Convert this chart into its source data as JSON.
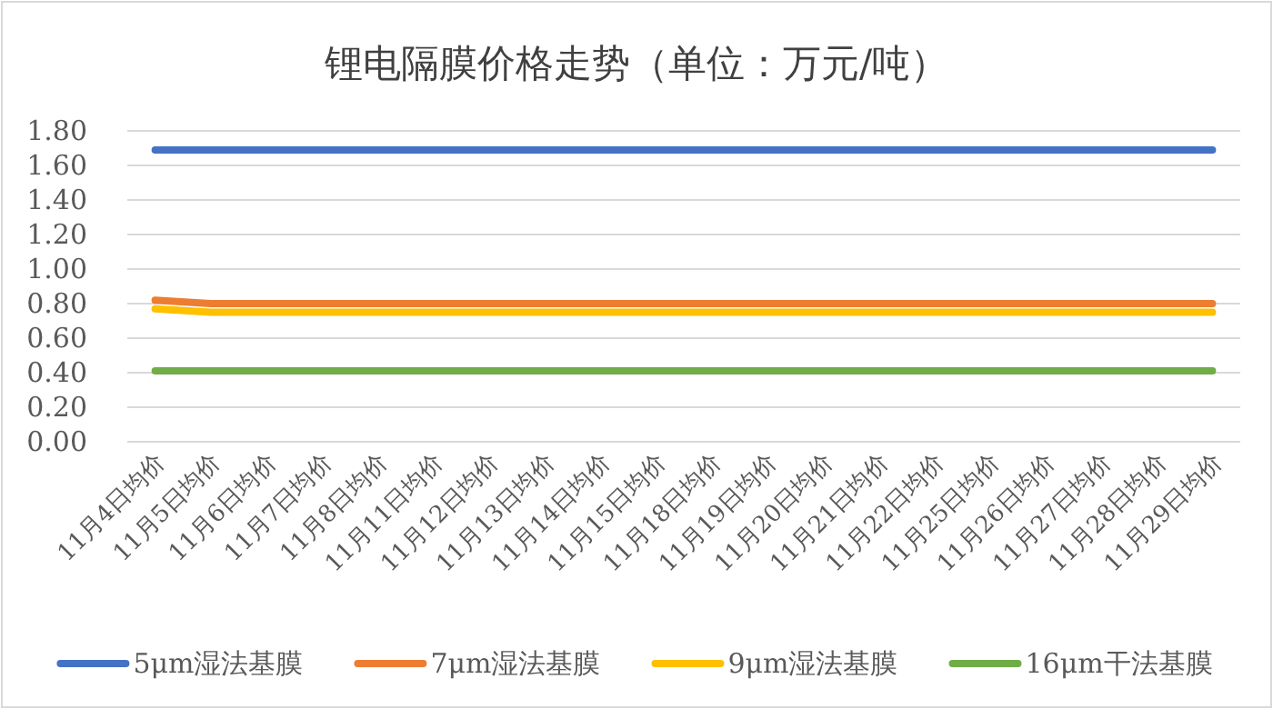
{
  "chart_data": {
    "type": "line",
    "title": "锂电隔膜价格走势（单位：万元/吨）",
    "categories": [
      "11月4日均价",
      "11月5日均价",
      "11月6日均价",
      "11月7日均价",
      "11月8日均价",
      "11月11日均价",
      "11月12日均价",
      "11月13日均价",
      "11月14日均价",
      "11月15日均价",
      "11月18日均价",
      "11月19日均价",
      "11月20日均价",
      "11月21日均价",
      "11月22日均价",
      "11月25日均价",
      "11月26日均价",
      "11月27日均价",
      "11月28日均价",
      "11月29日均价"
    ],
    "series": [
      {
        "name": "5μm湿法基膜",
        "color": "#4472c4",
        "values": [
          1.69,
          1.69,
          1.69,
          1.69,
          1.69,
          1.69,
          1.69,
          1.69,
          1.69,
          1.69,
          1.69,
          1.69,
          1.69,
          1.69,
          1.69,
          1.69,
          1.69,
          1.69,
          1.69,
          1.69
        ]
      },
      {
        "name": "7μm湿法基膜",
        "color": "#ed7d31",
        "values": [
          0.82,
          0.8,
          0.8,
          0.8,
          0.8,
          0.8,
          0.8,
          0.8,
          0.8,
          0.8,
          0.8,
          0.8,
          0.8,
          0.8,
          0.8,
          0.8,
          0.8,
          0.8,
          0.8,
          0.8
        ]
      },
      {
        "name": "9μm湿法基膜",
        "color": "#ffc000",
        "values": [
          0.77,
          0.75,
          0.75,
          0.75,
          0.75,
          0.75,
          0.75,
          0.75,
          0.75,
          0.75,
          0.75,
          0.75,
          0.75,
          0.75,
          0.75,
          0.75,
          0.75,
          0.75,
          0.75,
          0.75
        ]
      },
      {
        "name": "16μm干法基膜",
        "color": "#70ad47",
        "values": [
          0.41,
          0.41,
          0.41,
          0.41,
          0.41,
          0.41,
          0.41,
          0.41,
          0.41,
          0.41,
          0.41,
          0.41,
          0.41,
          0.41,
          0.41,
          0.41,
          0.41,
          0.41,
          0.41,
          0.41
        ]
      }
    ],
    "ylim": [
      0,
      1.8
    ],
    "yticks": [
      {
        "value": 0,
        "label": "0.00"
      },
      {
        "value": 0.2,
        "label": "0.20"
      },
      {
        "value": 0.4,
        "label": "0.40"
      },
      {
        "value": 0.6,
        "label": "0.60"
      },
      {
        "value": 0.8,
        "label": "0.80"
      },
      {
        "value": 1.0,
        "label": "1.00"
      },
      {
        "value": 1.2,
        "label": "1.20"
      },
      {
        "value": 1.4,
        "label": "1.40"
      },
      {
        "value": 1.6,
        "label": "1.60"
      },
      {
        "value": 1.8,
        "label": "1.80"
      }
    ],
    "grid": "y",
    "legend": "bottom",
    "marker": "none",
    "line_style": "solid"
  }
}
